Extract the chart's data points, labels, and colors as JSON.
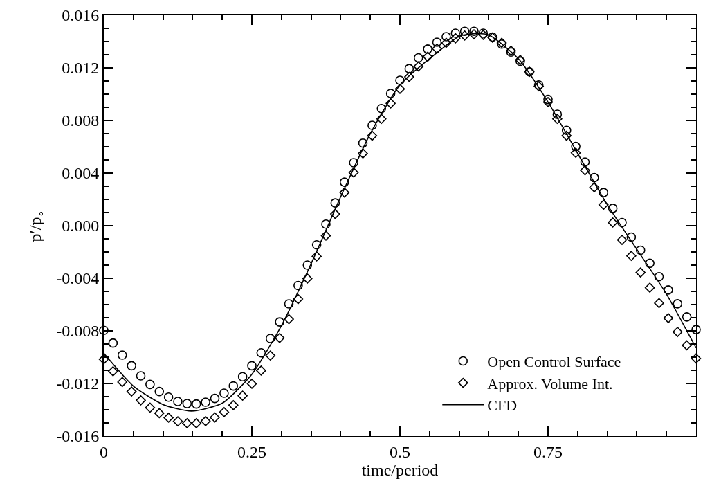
{
  "chart_data": {
    "type": "scatter",
    "xlabel": "time/period",
    "ylabel": "p′/p$_{∘}$",
    "xlim": [
      0,
      1
    ],
    "ylim": [
      -0.016,
      0.016
    ],
    "xticks": [
      0,
      {
        "value": 0.05,
        "label": null
      },
      {
        "value": 0.1,
        "label": null
      },
      {
        "value": 0.15,
        "label": null
      },
      {
        "value": 0.2,
        "label": null
      },
      0.25,
      {
        "value": 0.3,
        "label": null
      },
      {
        "value": 0.35,
        "label": null
      },
      {
        "value": 0.4,
        "label": null
      },
      {
        "value": 0.45,
        "label": null
      },
      0.5,
      {
        "value": 0.55,
        "label": null
      },
      {
        "value": 0.6,
        "label": null
      },
      {
        "value": 0.65,
        "label": null
      },
      {
        "value": 0.7,
        "label": null
      },
      0.75,
      {
        "value": 0.8,
        "label": null
      },
      {
        "value": 0.85,
        "label": null
      },
      {
        "value": 0.9,
        "label": null
      },
      {
        "value": 0.95,
        "label": null
      }
    ],
    "yticks": [
      {
        "value": -0.016,
        "label": "-0.016"
      },
      {
        "value": -0.015,
        "label": null
      },
      {
        "value": -0.014,
        "label": null
      },
      {
        "value": -0.013,
        "label": null
      },
      {
        "value": -0.012,
        "label": "-0.012"
      },
      {
        "value": -0.011,
        "label": null
      },
      {
        "value": -0.01,
        "label": null
      },
      {
        "value": -0.009,
        "label": null
      },
      {
        "value": -0.008,
        "label": "-0.008"
      },
      {
        "value": -0.007,
        "label": null
      },
      {
        "value": -0.006,
        "label": null
      },
      {
        "value": -0.005,
        "label": null
      },
      {
        "value": -0.004,
        "label": "-0.004"
      },
      {
        "value": -0.003,
        "label": null
      },
      {
        "value": -0.002,
        "label": null
      },
      {
        "value": -0.001,
        "label": null
      },
      {
        "value": 0,
        "label": "0.000"
      },
      {
        "value": 0.001,
        "label": null
      },
      {
        "value": 0.002,
        "label": null
      },
      {
        "value": 0.003,
        "label": null
      },
      {
        "value": 0.004,
        "label": "0.004"
      },
      {
        "value": 0.005,
        "label": null
      },
      {
        "value": 0.006,
        "label": null
      },
      {
        "value": 0.007,
        "label": null
      },
      {
        "value": 0.008,
        "label": "0.008"
      },
      {
        "value": 0.009,
        "label": null
      },
      {
        "value": 0.01,
        "label": null
      },
      {
        "value": 0.011,
        "label": null
      },
      {
        "value": 0.012,
        "label": "0.012"
      },
      {
        "value": 0.013,
        "label": null
      },
      {
        "value": 0.014,
        "label": null
      },
      {
        "value": 0.015,
        "label": null
      },
      {
        "value": 0.016,
        "label": "0.016"
      }
    ],
    "legend": "bottom right",
    "series": [
      {
        "name": "Open Control Surface",
        "color": "#000000",
        "marker": "circle",
        "x": [
          0,
          0.015625,
          0.03125,
          0.046875,
          0.0625,
          0.078125,
          0.09375,
          0.109375,
          0.125,
          0.140625,
          0.15625,
          0.171875,
          0.1875,
          0.203125,
          0.21875,
          0.234375,
          0.25,
          0.265625,
          0.28125,
          0.296875,
          0.3125,
          0.328125,
          0.34375,
          0.359375,
          0.375,
          0.390625,
          0.40625,
          0.421875,
          0.4375,
          0.453125,
          0.46875,
          0.484375,
          0.5,
          0.515625,
          0.53125,
          0.546875,
          0.5625,
          0.578125,
          0.59375,
          0.609375,
          0.625,
          0.640625,
          0.65625,
          0.671875,
          0.6875,
          0.703125,
          0.71875,
          0.734375,
          0.75,
          0.765625,
          0.78125,
          0.796875,
          0.8125,
          0.828125,
          0.84375,
          0.859375,
          0.875,
          0.890625,
          0.90625,
          0.921875,
          0.9375,
          0.953125,
          0.96875,
          0.984375,
          1
        ],
        "values": [
          -0.00796,
          -0.00893,
          -0.00984,
          -0.01065,
          -0.01142,
          -0.01207,
          -0.01261,
          -0.01304,
          -0.01337,
          -0.01353,
          -0.01356,
          -0.01342,
          -0.01314,
          -0.01274,
          -0.01219,
          -0.01149,
          -0.01065,
          -0.00967,
          -0.00858,
          -0.00732,
          -0.00595,
          -0.00455,
          -0.003,
          -0.00146,
          0.00012,
          0.00173,
          0.00331,
          0.00479,
          0.00628,
          0.00763,
          0.00891,
          0.01005,
          0.01105,
          0.01194,
          0.01276,
          0.01343,
          0.01395,
          0.01437,
          0.01463,
          0.01478,
          0.01478,
          0.01463,
          0.01434,
          0.0138,
          0.0132,
          0.0125,
          0.0117,
          0.0107,
          0.0096,
          0.00847,
          0.00725,
          0.00602,
          0.00484,
          0.00365,
          0.00252,
          0.00132,
          0.00024,
          -0.00087,
          -0.00187,
          -0.00286,
          -0.00388,
          -0.00489,
          -0.00594,
          -0.00694,
          -0.0079
        ]
      },
      {
        "name": "Approx. Volume Int.",
        "color": "#000000",
        "marker": "diamond",
        "x": [
          0,
          0.015625,
          0.03125,
          0.046875,
          0.0625,
          0.078125,
          0.09375,
          0.109375,
          0.125,
          0.140625,
          0.15625,
          0.171875,
          0.1875,
          0.203125,
          0.21875,
          0.234375,
          0.25,
          0.265625,
          0.28125,
          0.296875,
          0.3125,
          0.328125,
          0.34375,
          0.359375,
          0.375,
          0.390625,
          0.40625,
          0.421875,
          0.4375,
          0.453125,
          0.46875,
          0.484375,
          0.5,
          0.515625,
          0.53125,
          0.546875,
          0.5625,
          0.578125,
          0.59375,
          0.609375,
          0.625,
          0.640625,
          0.65625,
          0.671875,
          0.6875,
          0.703125,
          0.71875,
          0.734375,
          0.75,
          0.765625,
          0.78125,
          0.796875,
          0.8125,
          0.828125,
          0.84375,
          0.859375,
          0.875,
          0.890625,
          0.90625,
          0.921875,
          0.9375,
          0.953125,
          0.96875,
          0.984375,
          1
        ],
        "values": [
          -0.01016,
          -0.01107,
          -0.01189,
          -0.01261,
          -0.01328,
          -0.01384,
          -0.01426,
          -0.0146,
          -0.01488,
          -0.01502,
          -0.01502,
          -0.01486,
          -0.01458,
          -0.01418,
          -0.01365,
          -0.01293,
          -0.01202,
          -0.01102,
          -0.00988,
          -0.00854,
          -0.00711,
          -0.00558,
          -0.00402,
          -0.00234,
          -0.00076,
          0.00089,
          0.00252,
          0.00404,
          0.00549,
          0.00684,
          0.00812,
          0.0093,
          0.0104,
          0.01131,
          0.01211,
          0.01285,
          0.01346,
          0.0139,
          0.01425,
          0.01446,
          0.01455,
          0.01451,
          0.0143,
          0.0139,
          0.0133,
          0.0126,
          0.0117,
          0.0106,
          0.0094,
          0.00812,
          0.00684,
          0.00554,
          0.00421,
          0.00292,
          0.00159,
          0.00024,
          -0.00108,
          -0.0023,
          -0.00356,
          -0.00472,
          -0.00589,
          -0.00703,
          -0.00808,
          -0.0091,
          -0.0101
        ]
      },
      {
        "name": "CFD",
        "type": "line",
        "color": "#000000",
        "marker": "none",
        "line_style": "solid",
        "x": [
          0,
          0.05,
          0.1,
          0.148,
          0.2,
          0.25,
          0.3,
          0.35,
          0.4,
          0.45,
          0.5,
          0.55,
          0.6,
          0.625,
          0.65,
          0.7,
          0.75,
          0.8,
          0.85,
          0.9,
          0.95,
          1
        ],
        "values": [
          -0.0097,
          -0.0122,
          -0.0136,
          -0.0141,
          -0.0135,
          -0.0113,
          -0.0076,
          -0.0029,
          0.0022,
          0.007,
          0.0107,
          0.0127,
          0.0144,
          0.0146,
          0.0145,
          0.0127,
          0.0094,
          0.0055,
          0.0016,
          -0.0018,
          -0.0052,
          -0.0093
        ]
      }
    ]
  }
}
